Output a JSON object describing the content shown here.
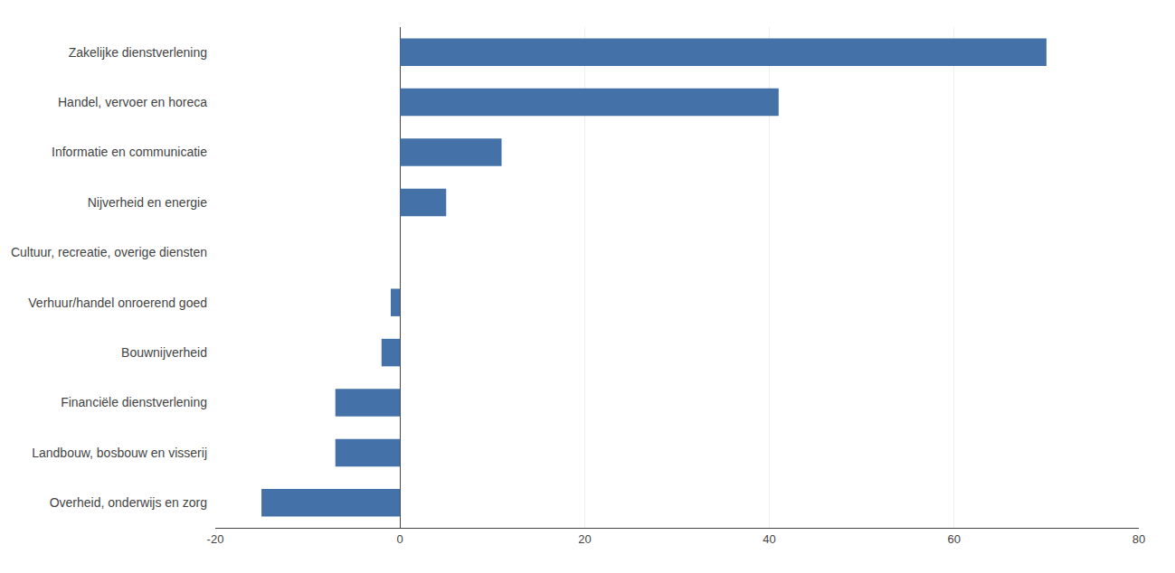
{
  "chart_data": {
    "type": "bar",
    "orientation": "horizontal",
    "categories": [
      "Zakelijke dienstverlening",
      "Handel, vervoer en horeca",
      "Informatie en communicatie",
      "Nijverheid en energie",
      "Cultuur, recreatie, overige diensten",
      "Verhuur/handel onroerend goed",
      "Bouwnijverheid",
      "Financiële dienstverlening",
      "Landbouw, bosbouw en visserij",
      "Overheid, onderwijs en zorg"
    ],
    "values": [
      70,
      41,
      11,
      5,
      0,
      -1,
      -2,
      -7,
      -7,
      -15
    ],
    "color": "#4472a8",
    "xlim": [
      -20,
      80
    ],
    "xticks": [
      -20,
      0,
      20,
      40,
      60,
      80
    ],
    "grid": true
  }
}
